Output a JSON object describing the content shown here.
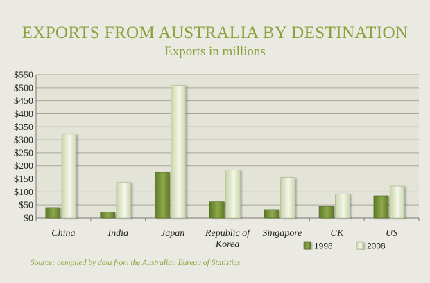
{
  "chart_data": {
    "type": "bar",
    "title": "EXPORTS FROM AUSTRALIA BY DESTINATION",
    "subtitle": "Exports in millions",
    "categories": [
      "China",
      "India",
      "Japan",
      "Republic of Korea",
      "Singapore",
      "UK",
      "US"
    ],
    "category_lines": [
      [
        "China"
      ],
      [
        "India"
      ],
      [
        "Japan"
      ],
      [
        "Republic of",
        "Korea"
      ],
      [
        "Singapore"
      ],
      [
        "UK"
      ],
      [
        "US"
      ]
    ],
    "series": [
      {
        "name": "1998",
        "values": [
          40,
          22,
          175,
          62,
          32,
          45,
          85
        ],
        "color": "#6f8c32"
      },
      {
        "name": "2008",
        "values": [
          322,
          136,
          508,
          184,
          155,
          92,
          122
        ],
        "color": "#dfe6c7"
      }
    ],
    "ylim": [
      0,
      550
    ],
    "yticks": [
      "$0",
      "$50",
      "$100",
      "$150",
      "$200",
      "$250",
      "$300",
      "$350",
      "$400",
      "$450",
      "$500",
      "$550"
    ],
    "grid": true,
    "legend_position": "bottom-right",
    "source": "Source: compiled by data from the Australian Bureau of Statistics"
  }
}
